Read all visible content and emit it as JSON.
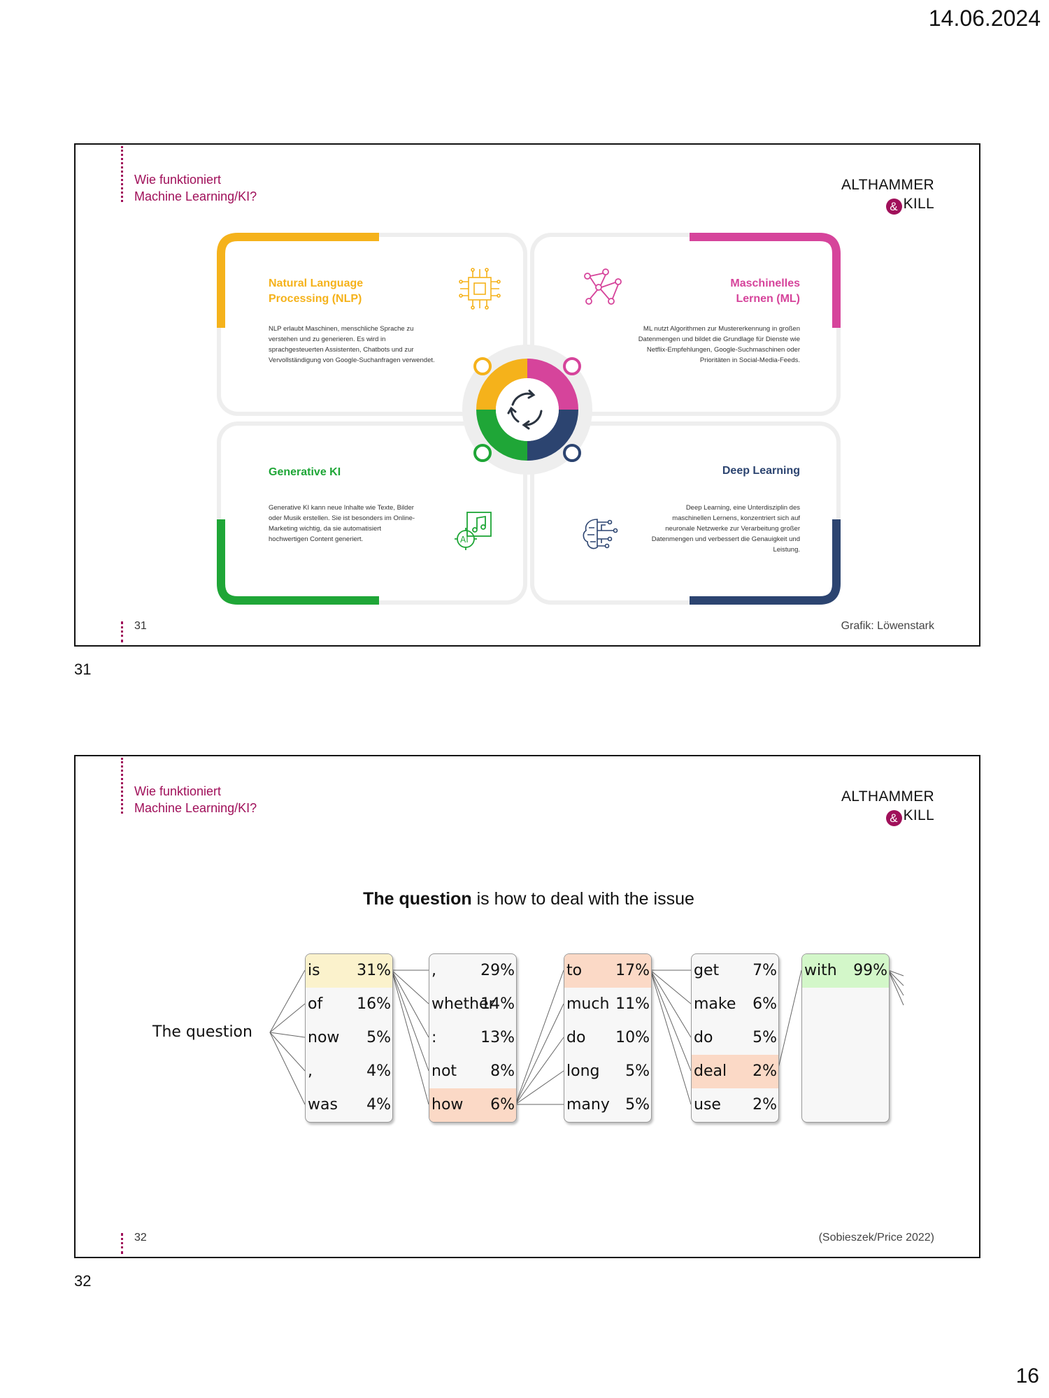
{
  "page": {
    "date": "14.06.2024",
    "page_number": "16"
  },
  "slide31": {
    "headline_line1": "Wie funktioniert",
    "headline_line2": "Machine Learning/KI?",
    "logo_line1": "ALTHAMMER",
    "logo_amp": "&",
    "logo_line2": "KILL",
    "slide_number": "31",
    "credit": "Grafik: Löwenstark",
    "label_below": "31",
    "quadrants": {
      "nlp": {
        "title1": "Natural Language",
        "title2": "Processing (NLP)",
        "text": "NLP erlaubt Maschinen, menschliche Sprache zu verstehen und zu generieren. Es wird in sprachgesteuerten Assistenten, Chatbots und zur Vervollständigung von Google-Suchanfragen verwendet.",
        "color": "#f5b21b",
        "icon": "chip-icon"
      },
      "ml": {
        "title1": "Maschinelles",
        "title2": "Lernen (ML)",
        "text": "ML nutzt Algorithmen zur Mustererkennung in großen Datenmengen und bildet die Grundlage für Dienste wie Netflix-Empfehlungen, Google-Suchmaschinen oder Prioritäten in Social-Media-Feeds.",
        "color": "#d6449b",
        "icon": "network-icon"
      },
      "genai": {
        "title": "Generative KI",
        "text": "Generative KI kann neue Inhalte wie Texte, Bilder oder Musik erstellen. Sie ist besonders im Online-Marketing wichtig, da sie automatisiert hochwertigen Content generiert.",
        "color": "#1fa637",
        "icon": "ai-music-icon"
      },
      "dl": {
        "title": "Deep Learning",
        "text": "Deep Learning, eine Unterdisziplin des maschinellen Lernens, konzentriert sich auf neuronale Netzwerke zur Verarbeitung großer Datenmengen und verbessert die Genauigkeit und Leistung.",
        "color": "#2c4470",
        "icon": "brain-circuit-icon"
      }
    },
    "center_icon": "cycle-arrows-icon"
  },
  "slide32": {
    "headline_line1": "Wie funktioniert",
    "headline_line2": "Machine Learning/KI?",
    "logo_line1": "ALTHAMMER",
    "logo_amp": "&",
    "logo_line2": "KILL",
    "slide_number": "32",
    "credit": "(Sobieszek/Price 2022)",
    "label_below": "32",
    "sentence_bold": "The question",
    "sentence_rest": " is how to deal with the issue",
    "prompt": "The question",
    "columns": [
      {
        "rows": [
          {
            "w": "is",
            "p": "31%",
            "hl": "yellow"
          },
          {
            "w": "of",
            "p": "16%"
          },
          {
            "w": "now",
            "p": "5%"
          },
          {
            "w": ",",
            "p": "4%"
          },
          {
            "w": "was",
            "p": "4%"
          }
        ]
      },
      {
        "rows": [
          {
            "w": ",",
            "p": "29%"
          },
          {
            "w": "whether",
            "p": "14%"
          },
          {
            "w": ":",
            "p": "13%"
          },
          {
            "w": "not",
            "p": "8%"
          },
          {
            "w": "how",
            "p": "6%",
            "hl": "orange"
          }
        ]
      },
      {
        "rows": [
          {
            "w": "to",
            "p": "17%",
            "hl": "orange"
          },
          {
            "w": "much",
            "p": "11%"
          },
          {
            "w": "do",
            "p": "10%"
          },
          {
            "w": "long",
            "p": "5%"
          },
          {
            "w": "many",
            "p": "5%"
          }
        ]
      },
      {
        "rows": [
          {
            "w": "get",
            "p": "7%"
          },
          {
            "w": "make",
            "p": "6%"
          },
          {
            "w": "do",
            "p": "5%"
          },
          {
            "w": "deal",
            "p": "2%",
            "hl": "orange"
          },
          {
            "w": "use",
            "p": "2%"
          }
        ]
      },
      {
        "rows": [
          {
            "w": "with",
            "p": "99%",
            "hl": "green"
          }
        ]
      }
    ]
  }
}
